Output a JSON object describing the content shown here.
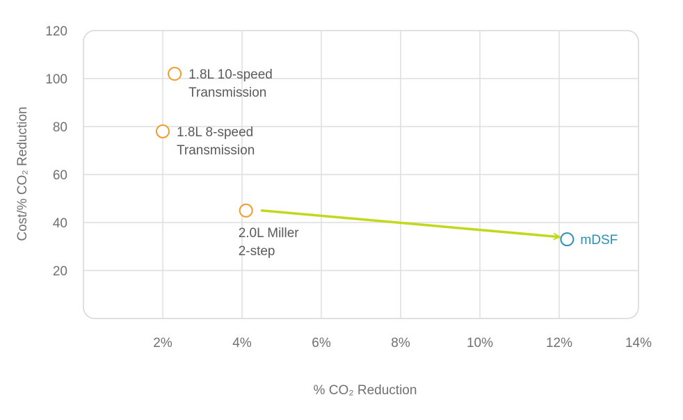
{
  "chart_data": {
    "type": "scatter",
    "xlabel": "% CO₂ Reduction",
    "ylabel": "Cost/% CO₂ Reduction",
    "xlim": [
      0,
      14
    ],
    "ylim": [
      0,
      120
    ],
    "x_ticks": [
      2,
      4,
      6,
      8,
      10,
      12,
      14
    ],
    "x_tick_labels": [
      "2%",
      "4%",
      "6%",
      "8%",
      "10%",
      "12%",
      "14%"
    ],
    "y_ticks": [
      20,
      40,
      60,
      80,
      100,
      120
    ],
    "y_tick_labels": [
      "20",
      "40",
      "60",
      "80",
      "100",
      "120"
    ],
    "grid": true,
    "points": [
      {
        "x": 2.3,
        "y": 102,
        "label": [
          "1.8L 10-speed",
          "Transmission"
        ],
        "color": "#f39a2b",
        "label_side": "right"
      },
      {
        "x": 2.0,
        "y": 78,
        "label": [
          "1.8L 8-speed",
          "Transmission"
        ],
        "color": "#f39a2b",
        "label_side": "right"
      },
      {
        "x": 4.1,
        "y": 45,
        "label": [
          "2.0L Miller",
          "2-step"
        ],
        "color": "#f39a2b",
        "label_side": "below"
      },
      {
        "x": 12.2,
        "y": 33,
        "label": [
          "mDSF"
        ],
        "color": "#2d8fb0",
        "label_side": "right"
      }
    ],
    "arrow": {
      "from": [
        4.5,
        45
      ],
      "to": [
        12.0,
        34
      ],
      "color": "#c2d81a"
    },
    "colors": {
      "grid": "#dedede",
      "frame": "#d6d6d6",
      "tick": "#707070",
      "label": "#5a5a5a"
    }
  }
}
